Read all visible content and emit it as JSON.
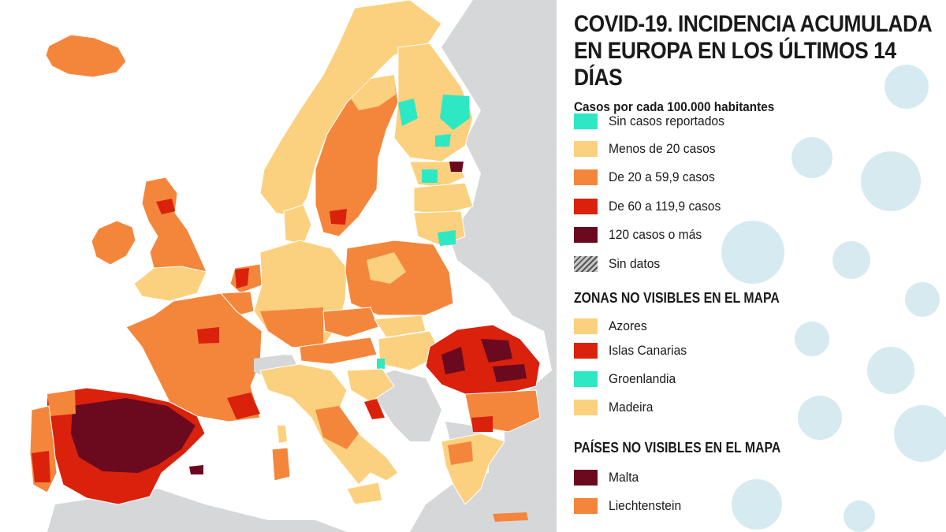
{
  "title_line1": "COVID-19. INCIDENCIA ACUMULADA",
  "title_line2": "EN EUROPA EN LOS ÚLTIMOS 14 DÍAS",
  "subtitle": "Casos por cada 100.000 habitantes",
  "legend": [
    {
      "label": "Sin casos reportados",
      "color": "#2ee8c4"
    },
    {
      "label": "Menos de 20 casos",
      "color": "#fbd17f"
    },
    {
      "label": "De 20 a 59,9 casos",
      "color": "#f4863c"
    },
    {
      "label": "De 60 a 119,9 casos",
      "color": "#d9210c"
    },
    {
      "label": "120 casos o más",
      "color": "#6b0a1e"
    },
    {
      "label": "Sin datos",
      "color": "hatch"
    }
  ],
  "zones_heading": "ZONAS NO VISIBLES EN EL MAPA",
  "zones": [
    {
      "label": "Azores",
      "color": "#fbd17f"
    },
    {
      "label": "Islas Canarias",
      "color": "#d9210c"
    },
    {
      "label": "Groenlandia",
      "color": "#2ee8c4"
    },
    {
      "label": "Madeira",
      "color": "#fbd17f"
    }
  ],
  "countries_heading": "PAÍSES NO VISIBLES EN EL MAPA",
  "countries": [
    {
      "label": "Malta",
      "color": "#6b0a1e"
    },
    {
      "label": "Liechtenstein",
      "color": "#f4863c"
    }
  ],
  "colors": {
    "sea": "#ffffff",
    "land_outside": "#d6d7d9",
    "none": "#2ee8c4",
    "low": "#fbd17f",
    "medium": "#f4863c",
    "high": "#d9210c",
    "very_high": "#6b0a1e"
  }
}
